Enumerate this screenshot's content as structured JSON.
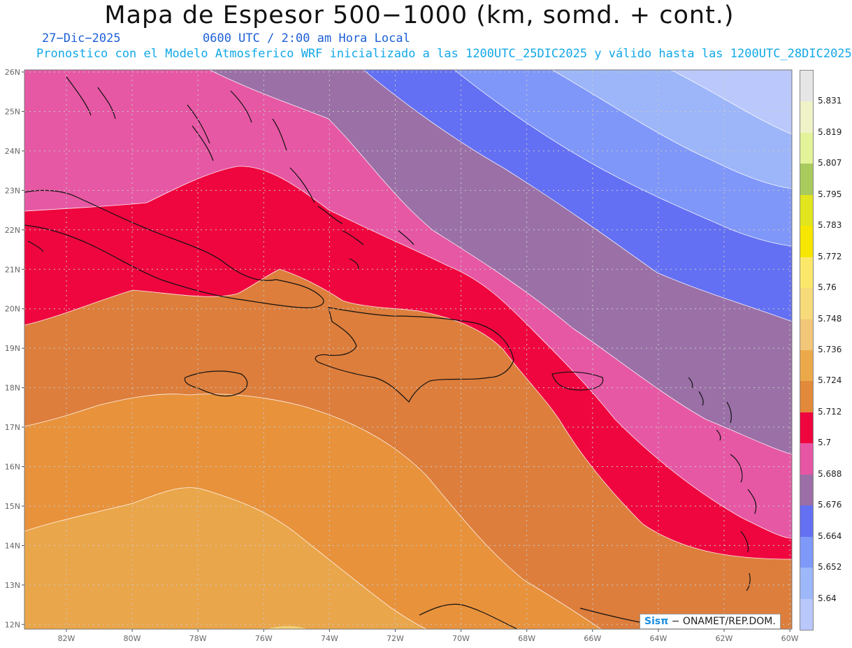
{
  "header": {
    "title": "Mapa de Espesor 500−1000 (km, somd. + cont.)",
    "date": "27−Dic−2025",
    "time": "0600 UTC / 2:00 am Hora Local",
    "init": "Pronostico con el Modelo Atmosferico WRF inicializado a las 1200UTC_25DIC2025 y válido hasta las  1200UTC_28DIC2025"
  },
  "axes": {
    "lat_labels": [
      "26N",
      "25N",
      "24N",
      "23N",
      "22N",
      "21N",
      "20N",
      "19N",
      "18N",
      "17N",
      "16N",
      "15N",
      "14N",
      "13N",
      "12N"
    ],
    "lon_labels": [
      "82W",
      "80W",
      "78W",
      "76W",
      "74W",
      "72W",
      "70W",
      "68W",
      "66W",
      "64W",
      "62W",
      "60W"
    ]
  },
  "colorbar": {
    "labels": [
      "5.831",
      "5.819",
      "5.807",
      "5.795",
      "5.783",
      "5.772",
      "5.76",
      "5.748",
      "5.736",
      "5.724",
      "5.712",
      "5.7",
      "5.688",
      "5.676",
      "5.664",
      "5.652",
      "5.64"
    ],
    "colors": [
      "#e6e6e6",
      "#f0f2c8",
      "#e3f39a",
      "#a9cb5e",
      "#e2e51e",
      "#f6e600",
      "#fbe86a",
      "#f7da7a",
      "#f2c679",
      "#eca94a",
      "#e28a3a",
      "#ef063f",
      "#e656a4",
      "#9b6fa6",
      "#6470f2",
      "#7f99f8",
      "#9db7f8",
      "#b9c7fb"
    ]
  },
  "map_colors": {
    "c5640": "#bac8fc",
    "c5652": "#9db6f9",
    "c5664": "#7f97f9",
    "c5676": "#6370f3",
    "c5688": "#9b70a7",
    "c5700": "#e658a4",
    "c5712": "#ef063f",
    "c5724": "#dd7e3c",
    "c5736": "#e8923c",
    "c5748": "#eaa64a",
    "c5760": "#f2cf78"
  },
  "credit": {
    "brand": "Sisπ",
    "text": "− ONAMET/REP.DOM."
  }
}
